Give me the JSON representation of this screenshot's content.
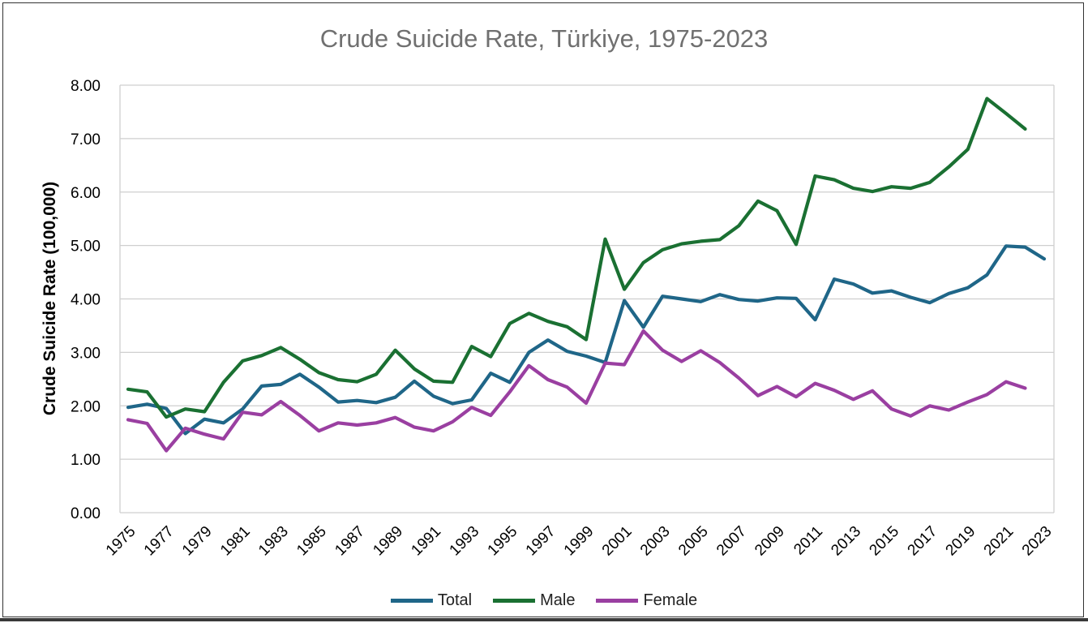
{
  "chart_data": {
    "type": "line",
    "title": "Crude Suicide Rate, Türkiye, 1975-2023",
    "xlabel": "",
    "ylabel": "Crude Suicide Rate (100,000)",
    "ylim": [
      0,
      8
    ],
    "yticks": [
      "0.00",
      "1.00",
      "2.00",
      "3.00",
      "4.00",
      "5.00",
      "6.00",
      "7.00",
      "8.00"
    ],
    "x": [
      1975,
      1976,
      1977,
      1978,
      1979,
      1980,
      1981,
      1982,
      1983,
      1984,
      1985,
      1986,
      1987,
      1988,
      1989,
      1990,
      1991,
      1992,
      1993,
      1994,
      1995,
      1996,
      1997,
      1998,
      1999,
      2000,
      2001,
      2002,
      2003,
      2004,
      2005,
      2006,
      2007,
      2008,
      2009,
      2010,
      2011,
      2012,
      2013,
      2014,
      2015,
      2016,
      2017,
      2018,
      2019,
      2020,
      2021,
      2022,
      2023
    ],
    "xtick_labels": [
      "1975",
      "1977",
      "1979",
      "1981",
      "1983",
      "1985",
      "1987",
      "1989",
      "1991",
      "1993",
      "1995",
      "1997",
      "1999",
      "2001",
      "2003",
      "2005",
      "2007",
      "2009",
      "2011",
      "2013",
      "2015",
      "2017",
      "2019",
      "2021",
      "2023"
    ],
    "grid": true,
    "legend_position": "bottom",
    "series": [
      {
        "name": "Total",
        "color": "#1f6688",
        "values": [
          1.97,
          2.03,
          1.95,
          1.48,
          1.75,
          1.68,
          1.94,
          2.37,
          2.4,
          2.59,
          2.35,
          2.07,
          2.1,
          2.06,
          2.16,
          2.46,
          2.18,
          2.04,
          2.11,
          2.61,
          2.44,
          3.0,
          3.23,
          3.02,
          2.93,
          2.81,
          3.97,
          3.47,
          4.05,
          4.0,
          3.95,
          4.08,
          3.99,
          3.96,
          4.02,
          4.01,
          3.61,
          4.37,
          4.28,
          4.11,
          4.15,
          4.03,
          3.93,
          4.1,
          4.21,
          4.45,
          4.99,
          4.97,
          4.75
        ]
      },
      {
        "name": "Male",
        "color": "#1a7032",
        "values": [
          2.31,
          2.26,
          1.79,
          1.94,
          1.89,
          2.44,
          2.84,
          2.94,
          3.09,
          2.87,
          2.62,
          2.49,
          2.45,
          2.59,
          3.04,
          2.69,
          2.46,
          2.44,
          3.11,
          2.92,
          3.54,
          3.73,
          3.58,
          3.48,
          3.24,
          5.12,
          4.18,
          4.68,
          4.92,
          5.03,
          5.08,
          5.11,
          5.37,
          5.83,
          5.65,
          5.02,
          6.3,
          6.23,
          6.07,
          6.01,
          6.1,
          6.07,
          6.18,
          6.47,
          6.8,
          7.75,
          7.47,
          7.18,
          null
        ]
      },
      {
        "name": "Female",
        "color": "#9a3fa1",
        "values": [
          1.74,
          1.67,
          1.16,
          1.58,
          1.47,
          1.38,
          1.88,
          1.83,
          2.08,
          1.82,
          1.53,
          1.68,
          1.64,
          1.68,
          1.78,
          1.6,
          1.53,
          1.7,
          1.97,
          1.82,
          2.26,
          2.75,
          2.49,
          2.35,
          2.05,
          2.8,
          2.77,
          3.4,
          3.04,
          2.83,
          3.03,
          2.81,
          2.52,
          2.19,
          2.36,
          2.17,
          2.42,
          2.29,
          2.12,
          2.28,
          1.94,
          1.81,
          2.0,
          1.92,
          2.07,
          2.21,
          2.45,
          2.33,
          null
        ]
      }
    ]
  }
}
